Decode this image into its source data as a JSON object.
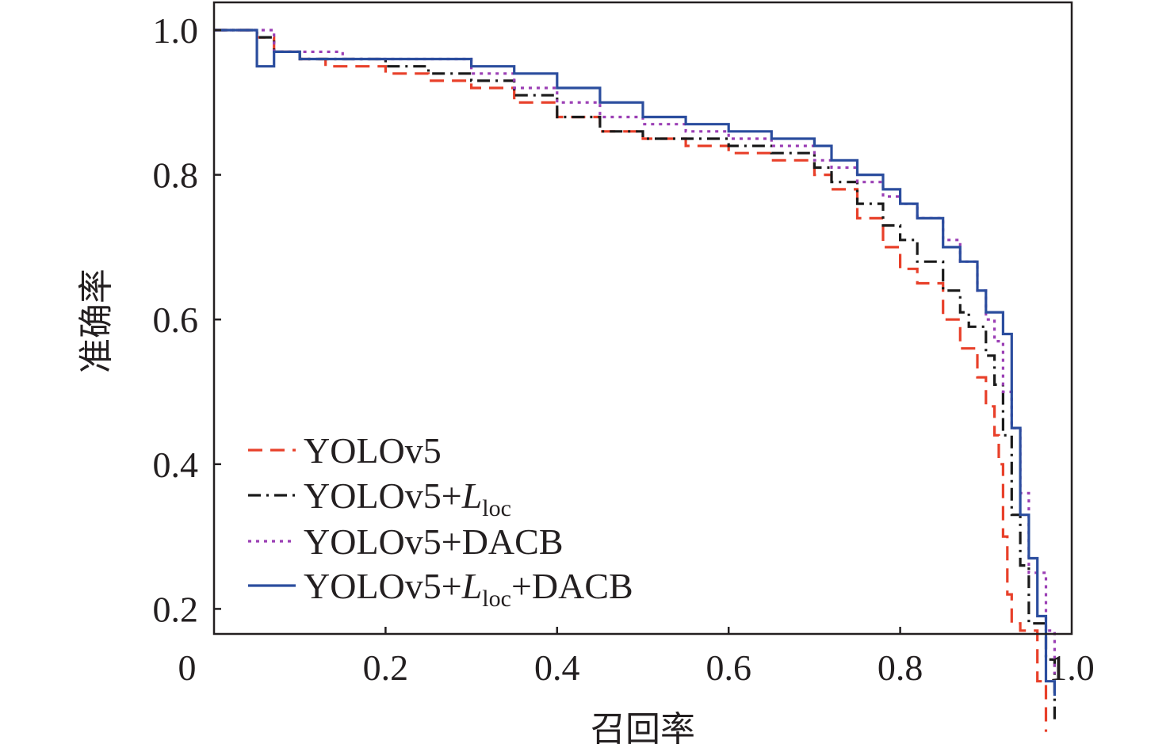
{
  "chart_data": {
    "type": "line",
    "title": "",
    "xlabel": "召回率",
    "ylabel": "准确率",
    "xlim": [
      0,
      1.0
    ],
    "ylim": [
      0,
      1.0
    ],
    "x_ticks": [
      {
        "value": 0,
        "label": "0"
      },
      {
        "value": 0.2,
        "label": "0.2"
      },
      {
        "value": 0.4,
        "label": "0.4"
      },
      {
        "value": 0.6,
        "label": "0.6"
      },
      {
        "value": 0.8,
        "label": "0.8"
      },
      {
        "value": 1.0,
        "label": "1.0"
      }
    ],
    "y_ticks": [
      {
        "value": 0.2,
        "label": "0.2"
      },
      {
        "value": 0.4,
        "label": "0.4"
      },
      {
        "value": 0.6,
        "label": "0.6"
      },
      {
        "value": 0.8,
        "label": "0.8"
      },
      {
        "value": 1.0,
        "label": "1.0"
      }
    ],
    "grid": false,
    "legend_position": "bottom-left",
    "series": [
      {
        "name": "YOLOv5",
        "name_main": "YOLOv5",
        "name_sub": "",
        "name_tail": "",
        "color": "#e8402a",
        "dash": "18,10",
        "x": [
          0,
          0.05,
          0.07,
          0.1,
          0.13,
          0.16,
          0.2,
          0.25,
          0.3,
          0.35,
          0.4,
          0.45,
          0.5,
          0.55,
          0.6,
          0.65,
          0.7,
          0.72,
          0.75,
          0.78,
          0.8,
          0.82,
          0.85,
          0.87,
          0.89,
          0.9,
          0.91,
          0.915,
          0.92,
          0.925,
          0.93,
          0.94,
          0.96,
          0.97
        ],
        "y": [
          1.0,
          0.99,
          0.97,
          0.96,
          0.95,
          0.95,
          0.94,
          0.93,
          0.92,
          0.9,
          0.88,
          0.86,
          0.85,
          0.84,
          0.83,
          0.82,
          0.8,
          0.78,
          0.74,
          0.7,
          0.67,
          0.65,
          0.6,
          0.56,
          0.52,
          0.48,
          0.44,
          0.4,
          0.3,
          0.22,
          0.18,
          0.17,
          0.1,
          0.03
        ]
      },
      {
        "name": "YOLOv5+Lloc",
        "name_main": "YOLOv5+",
        "name_sub": "loc",
        "name_tail": "",
        "color": "#1a1a1a",
        "dash": "16,7,3,7",
        "x": [
          0,
          0.05,
          0.07,
          0.1,
          0.15,
          0.2,
          0.25,
          0.3,
          0.35,
          0.4,
          0.45,
          0.5,
          0.55,
          0.6,
          0.65,
          0.7,
          0.72,
          0.75,
          0.78,
          0.8,
          0.82,
          0.85,
          0.87,
          0.88,
          0.9,
          0.91,
          0.92,
          0.93,
          0.94,
          0.95,
          0.97,
          0.98
        ],
        "y": [
          1.0,
          0.99,
          0.97,
          0.96,
          0.96,
          0.95,
          0.94,
          0.93,
          0.91,
          0.88,
          0.86,
          0.85,
          0.85,
          0.84,
          0.83,
          0.81,
          0.79,
          0.76,
          0.73,
          0.71,
          0.68,
          0.64,
          0.61,
          0.59,
          0.55,
          0.51,
          0.44,
          0.33,
          0.26,
          0.18,
          0.13,
          0.04
        ]
      },
      {
        "name": "YOLOv5+DACB",
        "name_main": "YOLOv5+DACB",
        "name_sub": "",
        "name_tail": "",
        "color": "#9b3fb5",
        "dash": "4,6",
        "x": [
          0,
          0.05,
          0.07,
          0.1,
          0.15,
          0.2,
          0.25,
          0.3,
          0.35,
          0.4,
          0.45,
          0.5,
          0.55,
          0.6,
          0.65,
          0.7,
          0.72,
          0.75,
          0.78,
          0.8,
          0.82,
          0.85,
          0.87,
          0.89,
          0.9,
          0.91,
          0.92,
          0.93,
          0.94,
          0.95,
          0.97,
          0.98
        ],
        "y": [
          1.0,
          1.0,
          0.97,
          0.97,
          0.96,
          0.96,
          0.96,
          0.94,
          0.92,
          0.9,
          0.88,
          0.87,
          0.86,
          0.85,
          0.84,
          0.82,
          0.81,
          0.79,
          0.77,
          0.76,
          0.74,
          0.71,
          0.68,
          0.64,
          0.6,
          0.57,
          0.5,
          0.45,
          0.36,
          0.25,
          0.17,
          0.11
        ]
      },
      {
        "name": "YOLOv5+Lloc+DACB",
        "name_main": "YOLOv5+",
        "name_sub": "loc",
        "name_tail": "+DACB",
        "color": "#2b4d9e",
        "dash": "",
        "x": [
          0,
          0.03,
          0.05,
          0.07,
          0.1,
          0.15,
          0.2,
          0.25,
          0.3,
          0.35,
          0.4,
          0.45,
          0.5,
          0.55,
          0.6,
          0.65,
          0.7,
          0.72,
          0.75,
          0.78,
          0.8,
          0.82,
          0.85,
          0.87,
          0.89,
          0.9,
          0.92,
          0.93,
          0.94,
          0.95,
          0.96,
          0.97,
          0.98
        ],
        "y": [
          1.0,
          1.0,
          0.95,
          0.97,
          0.96,
          0.96,
          0.96,
          0.96,
          0.95,
          0.94,
          0.92,
          0.9,
          0.88,
          0.87,
          0.86,
          0.85,
          0.84,
          0.82,
          0.8,
          0.78,
          0.76,
          0.74,
          0.7,
          0.68,
          0.64,
          0.61,
          0.58,
          0.45,
          0.33,
          0.27,
          0.19,
          0.1,
          0.08
        ]
      }
    ]
  }
}
